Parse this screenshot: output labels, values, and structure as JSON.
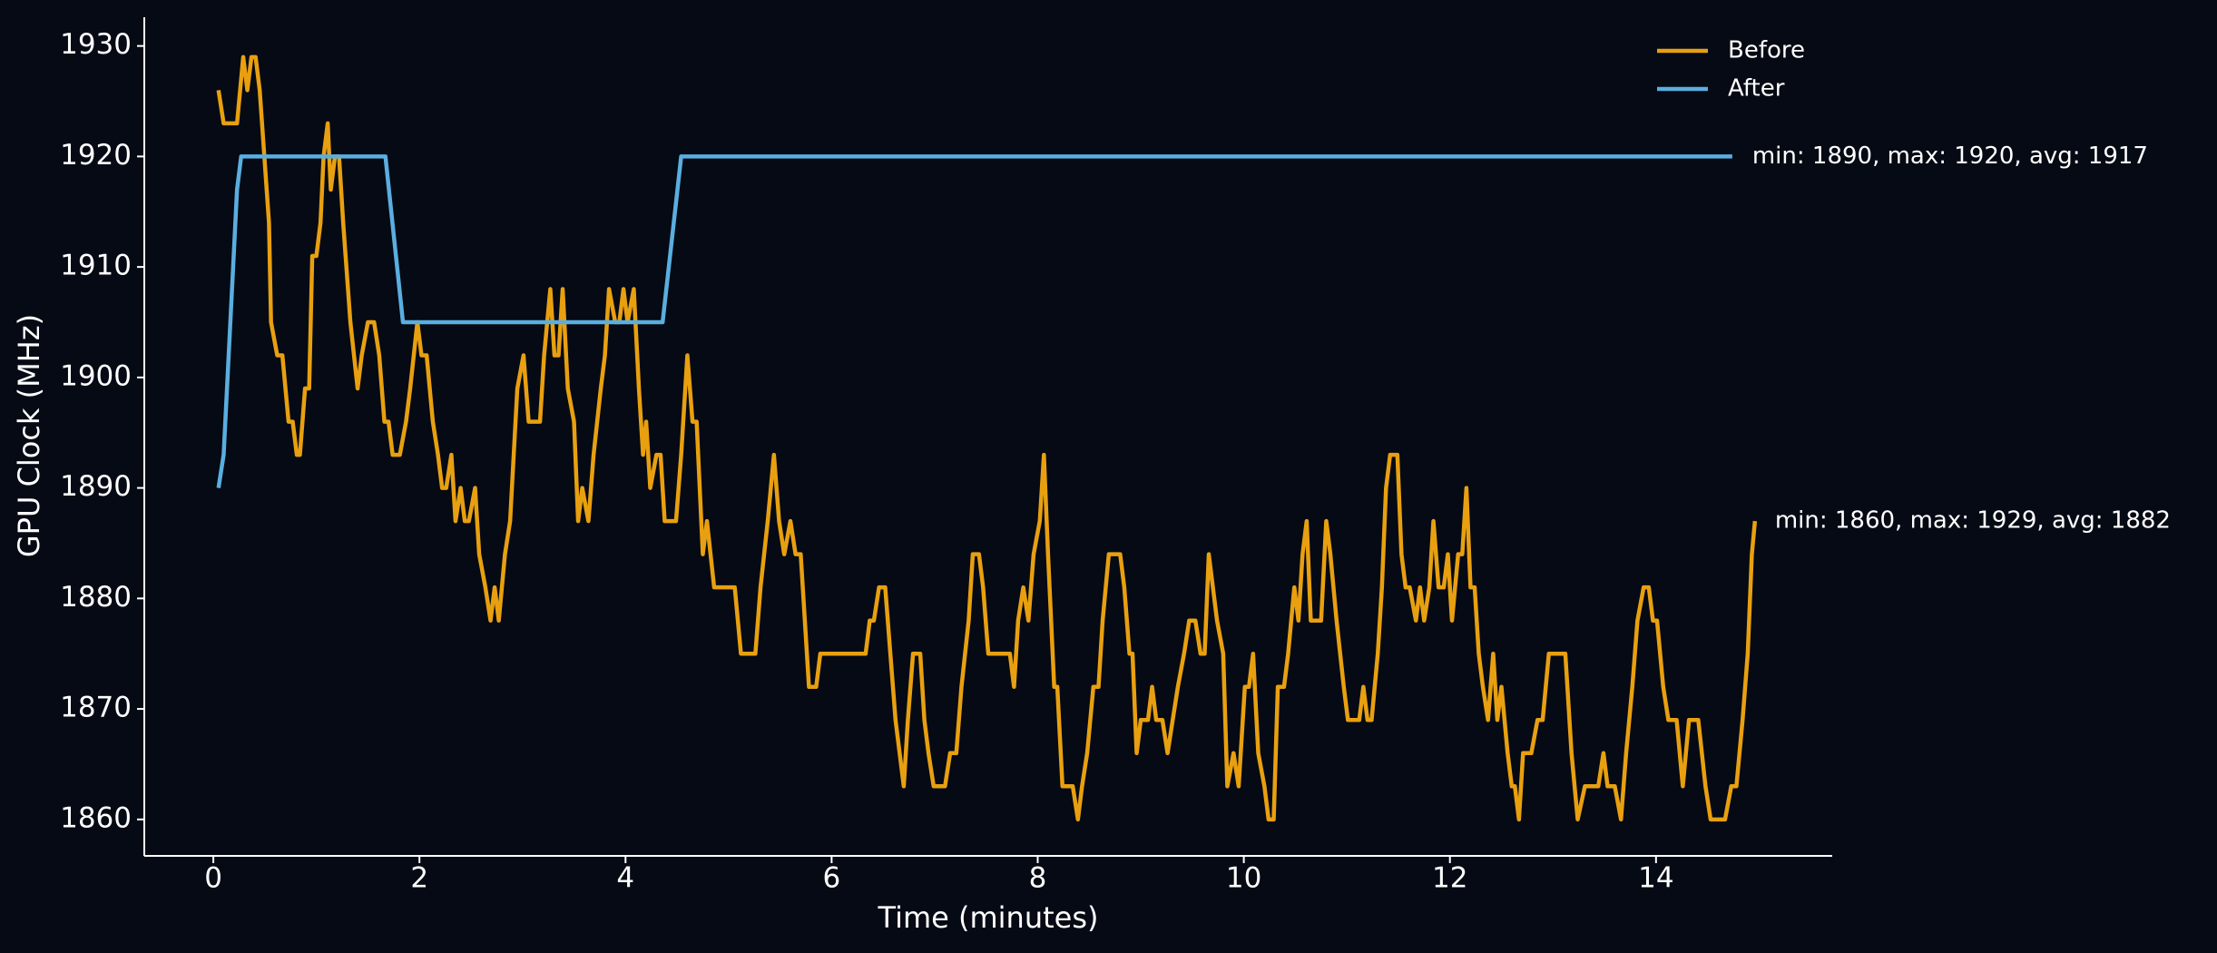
{
  "chart_data": {
    "type": "line",
    "xlabel": "Time (minutes)",
    "ylabel": "GPU Clock (MHz)",
    "xlim": [
      -0.67,
      15.71
    ],
    "ylim": [
      1856.7,
      1932.6
    ],
    "xticks": [
      0,
      2,
      4,
      6,
      8,
      10,
      12,
      14
    ],
    "yticks": [
      1860,
      1870,
      1880,
      1890,
      1900,
      1910,
      1920,
      1930
    ],
    "grid": false,
    "legend": "upper right",
    "background": "#050a14",
    "series": [
      {
        "name": "Before",
        "color": "#e8a010",
        "x": [
          0.05,
          0.1,
          0.23,
          0.29,
          0.33,
          0.37,
          0.41,
          0.45,
          0.54,
          0.56,
          0.62,
          0.67,
          0.73,
          0.77,
          0.81,
          0.84,
          0.89,
          0.93,
          0.96,
          1.0,
          1.04,
          1.07,
          1.11,
          1.14,
          1.18,
          1.22,
          1.26,
          1.33,
          1.4,
          1.44,
          1.5,
          1.56,
          1.61,
          1.66,
          1.7,
          1.74,
          1.81,
          1.87,
          1.91,
          1.98,
          2.02,
          2.07,
          2.13,
          2.18,
          2.22,
          2.26,
          2.31,
          2.35,
          2.4,
          2.44,
          2.48,
          2.54,
          2.58,
          2.64,
          2.69,
          2.73,
          2.77,
          2.83,
          2.88,
          2.95,
          3.01,
          3.06,
          3.17,
          3.21,
          3.27,
          3.31,
          3.35,
          3.39,
          3.44,
          3.5,
          3.54,
          3.58,
          3.64,
          3.69,
          3.76,
          3.8,
          3.84,
          3.9,
          3.94,
          3.98,
          4.02,
          4.08,
          4.13,
          4.17,
          4.2,
          4.24,
          4.3,
          4.34,
          4.38,
          4.49,
          4.54,
          4.6,
          4.65,
          4.69,
          4.75,
          4.79,
          4.86,
          5.06,
          5.12,
          5.26,
          5.31,
          5.38,
          5.44,
          5.49,
          5.54,
          5.6,
          5.65,
          5.7,
          5.74,
          5.78,
          5.85,
          5.89,
          6.33,
          6.37,
          6.41,
          6.46,
          6.52,
          6.57,
          6.62,
          6.66,
          6.7,
          6.74,
          6.79,
          6.86,
          6.9,
          6.94,
          6.99,
          7.1,
          7.15,
          7.21,
          7.26,
          7.33,
          7.37,
          7.43,
          7.47,
          7.52,
          7.73,
          7.77,
          7.81,
          7.86,
          7.91,
          7.96,
          8.02,
          8.06,
          8.1,
          8.16,
          8.19,
          8.24,
          8.34,
          8.39,
          8.43,
          8.48,
          8.54,
          8.59,
          8.63,
          8.69,
          8.8,
          8.84,
          8.89,
          8.92,
          8.96,
          9.0,
          9.07,
          9.11,
          9.15,
          9.21,
          9.26,
          9.31,
          9.36,
          9.42,
          9.47,
          9.53,
          9.58,
          9.62,
          9.66,
          9.7,
          9.74,
          9.8,
          9.84,
          9.9,
          9.95,
          10.01,
          10.05,
          10.09,
          10.14,
          10.2,
          10.24,
          10.29,
          10.33,
          10.39,
          10.43,
          10.49,
          10.53,
          10.57,
          10.61,
          10.65,
          10.75,
          10.8,
          10.84,
          10.9,
          10.97,
          11.01,
          11.12,
          11.16,
          11.2,
          11.24,
          11.3,
          11.34,
          11.38,
          11.42,
          11.49,
          11.53,
          11.57,
          11.61,
          11.67,
          11.71,
          11.75,
          11.8,
          11.84,
          11.89,
          11.94,
          11.98,
          12.02,
          12.08,
          12.12,
          12.16,
          12.2,
          12.24,
          12.28,
          12.32,
          12.37,
          12.42,
          12.46,
          12.5,
          12.56,
          12.6,
          12.63,
          12.67,
          12.71,
          12.79,
          12.85,
          12.9,
          12.96,
          13.12,
          13.18,
          13.24,
          13.31,
          13.44,
          13.49,
          13.53,
          13.6,
          13.66,
          13.71,
          13.77,
          13.82,
          13.88,
          13.93,
          13.97,
          14.01,
          14.07,
          14.12,
          14.2,
          14.26,
          14.32,
          14.41,
          14.48,
          14.53,
          14.67,
          14.73,
          14.78,
          14.84,
          14.89,
          14.93,
          14.96
        ],
        "values": [
          1926,
          1923,
          1923,
          1929,
          1926,
          1929,
          1929,
          1926,
          1914,
          1905,
          1902,
          1902,
          1896,
          1896,
          1893,
          1893,
          1899,
          1899,
          1911,
          1911,
          1914,
          1920,
          1923,
          1917,
          1920,
          1920,
          1914,
          1905,
          1899,
          1902,
          1905,
          1905,
          1902,
          1896,
          1896,
          1893,
          1893,
          1896,
          1899,
          1905,
          1902,
          1902,
          1896,
          1893,
          1890,
          1890,
          1893,
          1887,
          1890,
          1887,
          1887,
          1890,
          1884,
          1881,
          1878,
          1881,
          1878,
          1884,
          1887,
          1899,
          1902,
          1896,
          1896,
          1902,
          1908,
          1902,
          1902,
          1908,
          1899,
          1896,
          1887,
          1890,
          1887,
          1893,
          1899,
          1902,
          1908,
          1905,
          1905,
          1908,
          1905,
          1908,
          1899,
          1893,
          1896,
          1890,
          1893,
          1893,
          1887,
          1887,
          1893,
          1902,
          1896,
          1896,
          1884,
          1887,
          1881,
          1881,
          1875,
          1875,
          1881,
          1887,
          1893,
          1887,
          1884,
          1887,
          1884,
          1884,
          1878,
          1872,
          1872,
          1875,
          1875,
          1878,
          1878,
          1881,
          1881,
          1875,
          1869,
          1866,
          1863,
          1869,
          1875,
          1875,
          1869,
          1866,
          1863,
          1863,
          1866,
          1866,
          1872,
          1878,
          1884,
          1884,
          1881,
          1875,
          1875,
          1872,
          1878,
          1881,
          1878,
          1884,
          1887,
          1893,
          1884,
          1872,
          1872,
          1863,
          1863,
          1860,
          1863,
          1866,
          1872,
          1872,
          1878,
          1884,
          1884,
          1881,
          1875,
          1875,
          1866,
          1869,
          1869,
          1872,
          1869,
          1869,
          1866,
          1869,
          1872,
          1875,
          1878,
          1878,
          1875,
          1875,
          1884,
          1881,
          1878,
          1875,
          1863,
          1866,
          1863,
          1872,
          1872,
          1875,
          1866,
          1863,
          1860,
          1860,
          1872,
          1872,
          1875,
          1881,
          1878,
          1884,
          1887,
          1878,
          1878,
          1887,
          1884,
          1878,
          1872,
          1869,
          1869,
          1872,
          1869,
          1869,
          1875,
          1881,
          1890,
          1893,
          1893,
          1884,
          1881,
          1881,
          1878,
          1881,
          1878,
          1881,
          1887,
          1881,
          1881,
          1884,
          1878,
          1884,
          1884,
          1890,
          1881,
          1881,
          1875,
          1872,
          1869,
          1875,
          1869,
          1872,
          1866,
          1863,
          1863,
          1860,
          1866,
          1866,
          1869,
          1869,
          1875,
          1875,
          1866,
          1860,
          1863,
          1863,
          1866,
          1863,
          1863,
          1860,
          1866,
          1872,
          1878,
          1881,
          1881,
          1878,
          1878,
          1872,
          1869,
          1869,
          1863,
          1869,
          1869,
          1863,
          1860,
          1860,
          1863,
          1863,
          1869,
          1875,
          1884,
          1887
        ]
      },
      {
        "name": "After",
        "color": "#5aaee0",
        "x": [
          0.05,
          0.1,
          0.23,
          0.27,
          1.67,
          1.84,
          4.36,
          4.54,
          14.74
        ],
        "values": [
          1890,
          1893,
          1917,
          1920,
          1920,
          1905,
          1905,
          1920,
          1920
        ]
      }
    ],
    "annotations": [
      "min: 1860, max: 1929, avg: 1882",
      "min: 1890, max: 1920, avg: 1917"
    ]
  }
}
